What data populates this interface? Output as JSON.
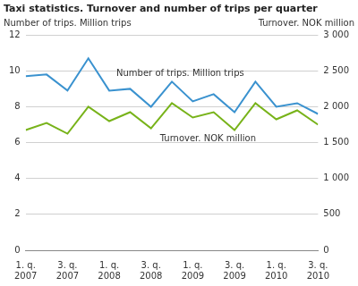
{
  "chart_data": {
    "type": "line",
    "title": "Taxi statistics. Turnover and number of trips per quarter",
    "y_label": "Number of trips. Million trips",
    "y2_label": "Turnover. NOK million",
    "categories": [
      "1. q. 2007",
      null,
      "3. q. 2007",
      null,
      "1. q. 2008",
      null,
      "3. q. 2008",
      null,
      "1. q. 2009",
      null,
      "3. q. 2009",
      null,
      "1. q. 2010",
      null,
      "3. q. 2010"
    ],
    "series": [
      {
        "name": "Number of trips. Million trips",
        "color": "#3a92cf",
        "values": [
          9.7,
          9.8,
          8.9,
          10.7,
          8.9,
          9.0,
          8.0,
          9.4,
          8.3,
          8.7,
          7.7,
          9.4,
          8.0,
          8.2,
          7.6
        ]
      },
      {
        "name": "Turnover. NOK million",
        "color": "#78b31a",
        "axis": "y2",
        "values": [
          1675,
          1775,
          1625,
          2000,
          1800,
          1925,
          1700,
          2050,
          1850,
          1925,
          1675,
          2050,
          1825,
          1950,
          1750
        ]
      }
    ],
    "ylim": [
      0,
      12
    ],
    "yticks": [
      0,
      2,
      4,
      6,
      8,
      10,
      12
    ],
    "y2lim": [
      0,
      3000
    ],
    "y2ticks": [
      0,
      500,
      {
        "value": 1000,
        "label": "1 000"
      },
      {
        "value": 1500,
        "label": "1 500"
      },
      {
        "value": 2000,
        "label": "2 000"
      },
      {
        "value": 2500,
        "label": "2 500"
      },
      {
        "value": 3000,
        "label": "3 000"
      }
    ],
    "grid": true
  }
}
